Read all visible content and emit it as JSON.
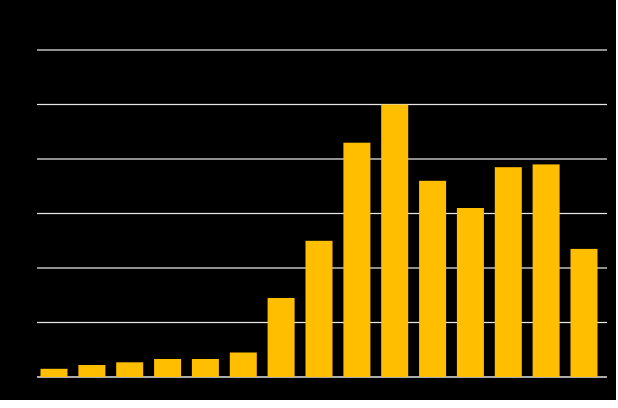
{
  "chart_data": {
    "type": "bar",
    "title": "",
    "xlabel": "",
    "ylabel": "",
    "categories": [
      "",
      "",
      "",
      "",
      "",
      "",
      "",
      "",
      "",
      "",
      "",
      "",
      "",
      "",
      ""
    ],
    "values": [
      0.15,
      0.22,
      0.27,
      0.33,
      0.33,
      0.45,
      1.45,
      2.5,
      4.3,
      5.0,
      3.6,
      3.1,
      3.85,
      3.9,
      2.35
    ],
    "ylim": [
      0,
      6
    ],
    "yticks": [
      0,
      1,
      2,
      3,
      4,
      5,
      6
    ],
    "grid": true,
    "legend": "none",
    "colors": {
      "background": "#000000",
      "bar": "#FFBF00",
      "grid": "#E6E6E6",
      "frame": "#FFFFFF"
    }
  }
}
